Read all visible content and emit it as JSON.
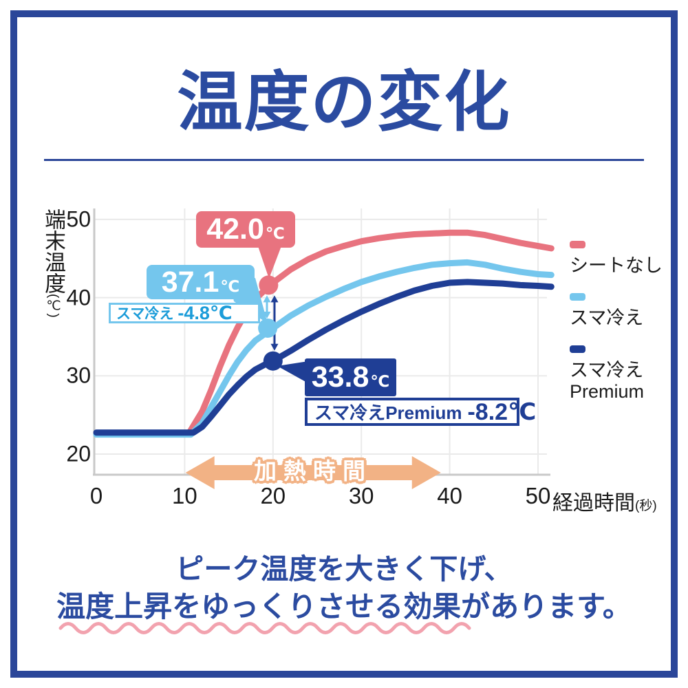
{
  "header": {
    "title": "温度の変化"
  },
  "colors": {
    "frame": "#2B4699",
    "title": "#2B4BA0",
    "pink": "#E8737F",
    "lightblue": "#74C6ED",
    "navy": "#1F3E95",
    "orange": "#F2B285",
    "cyan_text": "#1B9CD9",
    "grid": "#EAEAEA",
    "axis": "#C8C8C8",
    "wave": "#F2A2AE"
  },
  "chart_data": {
    "type": "line",
    "title": "温度の変化",
    "xlabel": "経過時間",
    "xlabel_unit": "(秒)",
    "ylabel": "端末温度",
    "ylabel_unit": "(℃)",
    "x_ticks": [
      0,
      10,
      20,
      30,
      40,
      50
    ],
    "y_ticks": [
      20,
      30,
      40,
      50
    ],
    "xlim": [
      0,
      51.5
    ],
    "ylim": [
      18,
      51
    ],
    "grid": true,
    "legend_position": "right",
    "series": [
      {
        "name": "シートなし",
        "color": "#E8737F",
        "marker": [
          19.5,
          41.6
        ],
        "points": [
          [
            0,
            22.7
          ],
          [
            10.5,
            22.7
          ],
          [
            12,
            25.5
          ],
          [
            13,
            28.2
          ],
          [
            14,
            31.2
          ],
          [
            15,
            33.9
          ],
          [
            16,
            36.2
          ],
          [
            17,
            38.2
          ],
          [
            18,
            39.8
          ],
          [
            19,
            40.9
          ],
          [
            20,
            41.9
          ],
          [
            22,
            43.6
          ],
          [
            24,
            44.9
          ],
          [
            26,
            45.9
          ],
          [
            28,
            46.6
          ],
          [
            30,
            47.2
          ],
          [
            32,
            47.6
          ],
          [
            34,
            47.9
          ],
          [
            36,
            48.1
          ],
          [
            38,
            48.2
          ],
          [
            40,
            48.3
          ],
          [
            42,
            48.3
          ],
          [
            44,
            48.0
          ],
          [
            46,
            47.5
          ],
          [
            48,
            47.0
          ],
          [
            50,
            46.6
          ],
          [
            51.5,
            46.3
          ]
        ]
      },
      {
        "name": "スマ冷え",
        "color": "#74C6ED",
        "marker": [
          19.4,
          36.1
        ],
        "points": [
          [
            0,
            22.5
          ],
          [
            10.7,
            22.5
          ],
          [
            12,
            24.0
          ],
          [
            13,
            26.0
          ],
          [
            14,
            28.0
          ],
          [
            15,
            30.0
          ],
          [
            16,
            31.8
          ],
          [
            17,
            33.3
          ],
          [
            18,
            34.5
          ],
          [
            19,
            35.3
          ],
          [
            20,
            36.1
          ],
          [
            22,
            37.7
          ],
          [
            24,
            39.0
          ],
          [
            26,
            40.1
          ],
          [
            28,
            41.1
          ],
          [
            30,
            42.0
          ],
          [
            32,
            42.7
          ],
          [
            34,
            43.3
          ],
          [
            36,
            43.8
          ],
          [
            38,
            44.2
          ],
          [
            40,
            44.4
          ],
          [
            42,
            44.5
          ],
          [
            44,
            44.2
          ],
          [
            46,
            43.7
          ],
          [
            48,
            43.3
          ],
          [
            50,
            43.0
          ],
          [
            51.5,
            42.9
          ]
        ]
      },
      {
        "name": "スマ冷え Premium",
        "color": "#1F3E95",
        "marker": [
          20,
          31.9
        ],
        "points": [
          [
            0,
            22.75
          ],
          [
            11,
            22.75
          ],
          [
            12,
            23.5
          ],
          [
            13,
            24.8
          ],
          [
            14,
            26.2
          ],
          [
            15,
            27.6
          ],
          [
            16,
            28.8
          ],
          [
            17,
            29.9
          ],
          [
            18,
            30.8
          ],
          [
            19,
            31.4
          ],
          [
            20,
            31.9
          ],
          [
            22,
            33.2
          ],
          [
            24,
            34.6
          ],
          [
            26,
            35.9
          ],
          [
            28,
            37.1
          ],
          [
            30,
            38.2
          ],
          [
            32,
            39.2
          ],
          [
            34,
            40.1
          ],
          [
            36,
            40.9
          ],
          [
            38,
            41.5
          ],
          [
            40,
            41.9
          ],
          [
            42,
            42.0
          ],
          [
            44,
            41.9
          ],
          [
            46,
            41.8
          ],
          [
            48,
            41.6
          ],
          [
            50,
            41.5
          ],
          [
            51.5,
            41.4
          ]
        ]
      }
    ],
    "annotations": {
      "peak_none": {
        "value": "42.0",
        "unit": "℃"
      },
      "peak_sumahie": {
        "value": "37.1",
        "unit": "℃"
      },
      "peak_premium": {
        "value": "33.8",
        "unit": "℃"
      },
      "delta_sumahie": {
        "label": "スマ冷え",
        "value": "-4.8℃"
      },
      "delta_premium": {
        "label": "スマ冷えPremium",
        "value": "-8.2℃"
      },
      "heating_arrow": {
        "label": "加熱時間",
        "from_t": 10.1,
        "to_t": 39
      }
    },
    "legend": [
      {
        "label": "シートなし"
      },
      {
        "label": "スマ冷え"
      },
      {
        "line1": "スマ冷え",
        "line2": "Premium"
      }
    ]
  },
  "footer": {
    "line1": "ピーク温度を大きく下げ、",
    "line2": "温度上昇をゆっくりさせる効果があります。"
  }
}
